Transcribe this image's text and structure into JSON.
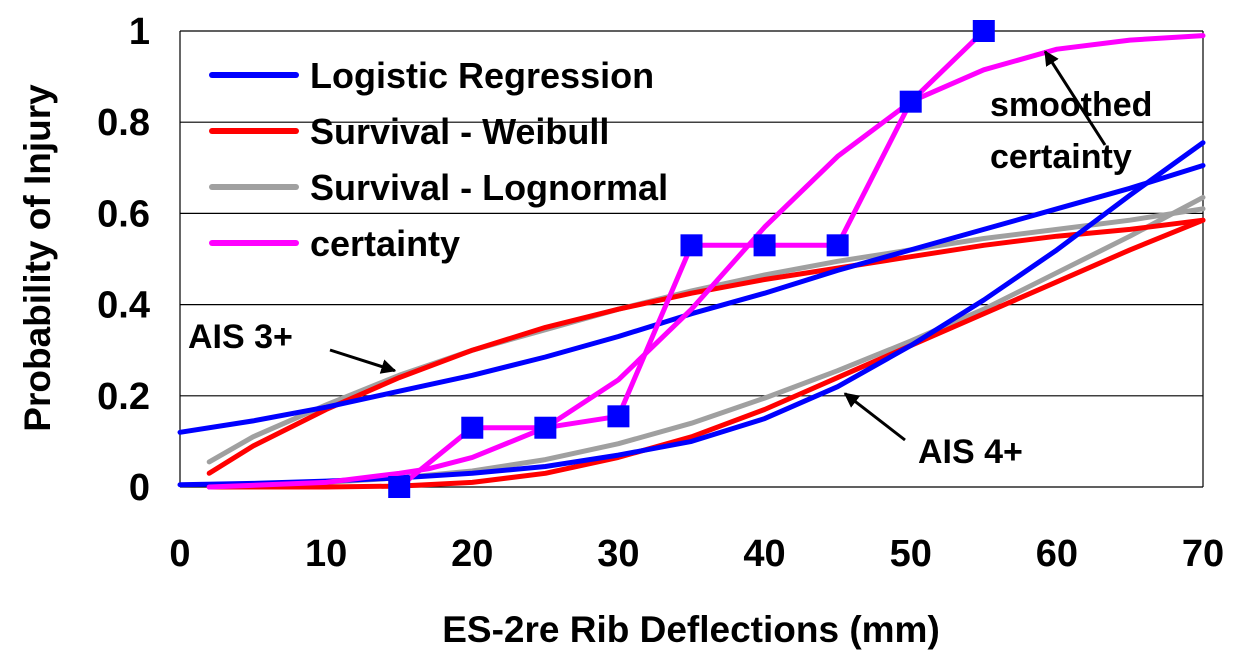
{
  "chart_data": {
    "type": "line",
    "xlabel": "ES-2re Rib Deflections (mm)",
    "ylabel": "Probability of Injury",
    "xlim": [
      0,
      70
    ],
    "ylim": [
      0,
      1
    ],
    "x_ticks": [
      "0",
      "10",
      "20",
      "30",
      "40",
      "50",
      "60",
      "70"
    ],
    "y_ticks": [
      "0",
      "0.2",
      "0.4",
      "0.6",
      "0.8",
      "1"
    ],
    "grid": "horizontal",
    "legend_position": "top-left",
    "series": [
      {
        "name": "Logistic Regression",
        "color": "#0000ff",
        "groups": [
          {
            "label": "AIS 3+",
            "points": [
              [
                0,
                0.12
              ],
              [
                5,
                0.145
              ],
              [
                10,
                0.175
              ],
              [
                15,
                0.21
              ],
              [
                20,
                0.245
              ],
              [
                25,
                0.285
              ],
              [
                30,
                0.33
              ],
              [
                35,
                0.38
              ],
              [
                40,
                0.425
              ],
              [
                45,
                0.475
              ],
              [
                50,
                0.52
              ],
              [
                55,
                0.565
              ],
              [
                60,
                0.61
              ],
              [
                65,
                0.655
              ],
              [
                70,
                0.705
              ]
            ]
          },
          {
            "label": "AIS 4+",
            "points": [
              [
                0,
                0.005
              ],
              [
                5,
                0.008
              ],
              [
                10,
                0.013
              ],
              [
                15,
                0.02
              ],
              [
                20,
                0.03
              ],
              [
                25,
                0.045
              ],
              [
                30,
                0.07
              ],
              [
                35,
                0.1
              ],
              [
                40,
                0.15
              ],
              [
                45,
                0.22
              ],
              [
                50,
                0.31
              ],
              [
                55,
                0.41
              ],
              [
                60,
                0.52
              ],
              [
                65,
                0.64
              ],
              [
                70,
                0.755
              ]
            ]
          }
        ]
      },
      {
        "name": "Survival - Weibull",
        "color": "#ff0000",
        "groups": [
          {
            "label": "AIS 3+",
            "points": [
              [
                2,
                0.03
              ],
              [
                5,
                0.09
              ],
              [
                10,
                0.17
              ],
              [
                15,
                0.24
              ],
              [
                20,
                0.3
              ],
              [
                25,
                0.35
              ],
              [
                30,
                0.39
              ],
              [
                35,
                0.425
              ],
              [
                40,
                0.455
              ],
              [
                45,
                0.48
              ],
              [
                50,
                0.505
              ],
              [
                55,
                0.53
              ],
              [
                60,
                0.55
              ],
              [
                65,
                0.565
              ],
              [
                70,
                0.585
              ]
            ]
          },
          {
            "label": "AIS 4+",
            "points": [
              [
                2,
                0
              ],
              [
                10,
                0
              ],
              [
                15,
                0.002
              ],
              [
                20,
                0.01
              ],
              [
                25,
                0.03
              ],
              [
                30,
                0.065
              ],
              [
                35,
                0.11
              ],
              [
                40,
                0.17
              ],
              [
                45,
                0.24
              ],
              [
                50,
                0.31
              ],
              [
                55,
                0.38
              ],
              [
                60,
                0.45
              ],
              [
                65,
                0.52
              ],
              [
                70,
                0.585
              ]
            ]
          }
        ]
      },
      {
        "name": "Survival - Lognormal",
        "color": "#a0a0a0",
        "groups": [
          {
            "label": "AIS 3+",
            "points": [
              [
                2,
                0.055
              ],
              [
                5,
                0.11
              ],
              [
                10,
                0.18
              ],
              [
                15,
                0.245
              ],
              [
                20,
                0.3
              ],
              [
                25,
                0.345
              ],
              [
                30,
                0.39
              ],
              [
                35,
                0.43
              ],
              [
                40,
                0.465
              ],
              [
                45,
                0.495
              ],
              [
                50,
                0.52
              ],
              [
                55,
                0.545
              ],
              [
                60,
                0.565
              ],
              [
                65,
                0.585
              ],
              [
                70,
                0.61
              ]
            ]
          },
          {
            "label": "AIS 4+",
            "points": [
              [
                2,
                0.003
              ],
              [
                10,
                0.01
              ],
              [
                15,
                0.02
              ],
              [
                20,
                0.035
              ],
              [
                25,
                0.06
              ],
              [
                30,
                0.095
              ],
              [
                35,
                0.14
              ],
              [
                40,
                0.195
              ],
              [
                45,
                0.255
              ],
              [
                50,
                0.32
              ],
              [
                55,
                0.39
              ],
              [
                60,
                0.47
              ],
              [
                65,
                0.55
              ],
              [
                70,
                0.635
              ]
            ]
          }
        ]
      },
      {
        "name": "certainty",
        "color": "#ff00ff",
        "marker": "square",
        "marker_color": "#0000ff",
        "points": [
          [
            15,
            0
          ],
          [
            20,
            0.13
          ],
          [
            25,
            0.13
          ],
          [
            30,
            0.155
          ],
          [
            35,
            0.53
          ],
          [
            40,
            0.53
          ],
          [
            45,
            0.53
          ],
          [
            50,
            0.845
          ],
          [
            55,
            1.0
          ]
        ]
      },
      {
        "name": "smoothed certainty",
        "legend": false,
        "color": "#ff00ff",
        "points": [
          [
            2,
            0
          ],
          [
            10,
            0.01
          ],
          [
            15,
            0.03
          ],
          [
            17,
            0.04
          ],
          [
            20,
            0.065
          ],
          [
            25,
            0.13
          ],
          [
            30,
            0.235
          ],
          [
            35,
            0.39
          ],
          [
            40,
            0.57
          ],
          [
            45,
            0.725
          ],
          [
            50,
            0.845
          ],
          [
            55,
            0.915
          ],
          [
            60,
            0.96
          ],
          [
            65,
            0.98
          ],
          [
            70,
            0.99
          ]
        ]
      }
    ],
    "annotations": [
      {
        "text": "AIS 3+",
        "arrow_to": [
          14.7,
          0.255
        ]
      },
      {
        "text": "AIS 4+",
        "arrow_to": [
          45.5,
          0.205
        ]
      },
      {
        "lines": [
          "smoothed",
          "certainty"
        ],
        "arrow_to": [
          59.2,
          0.955
        ]
      }
    ]
  }
}
